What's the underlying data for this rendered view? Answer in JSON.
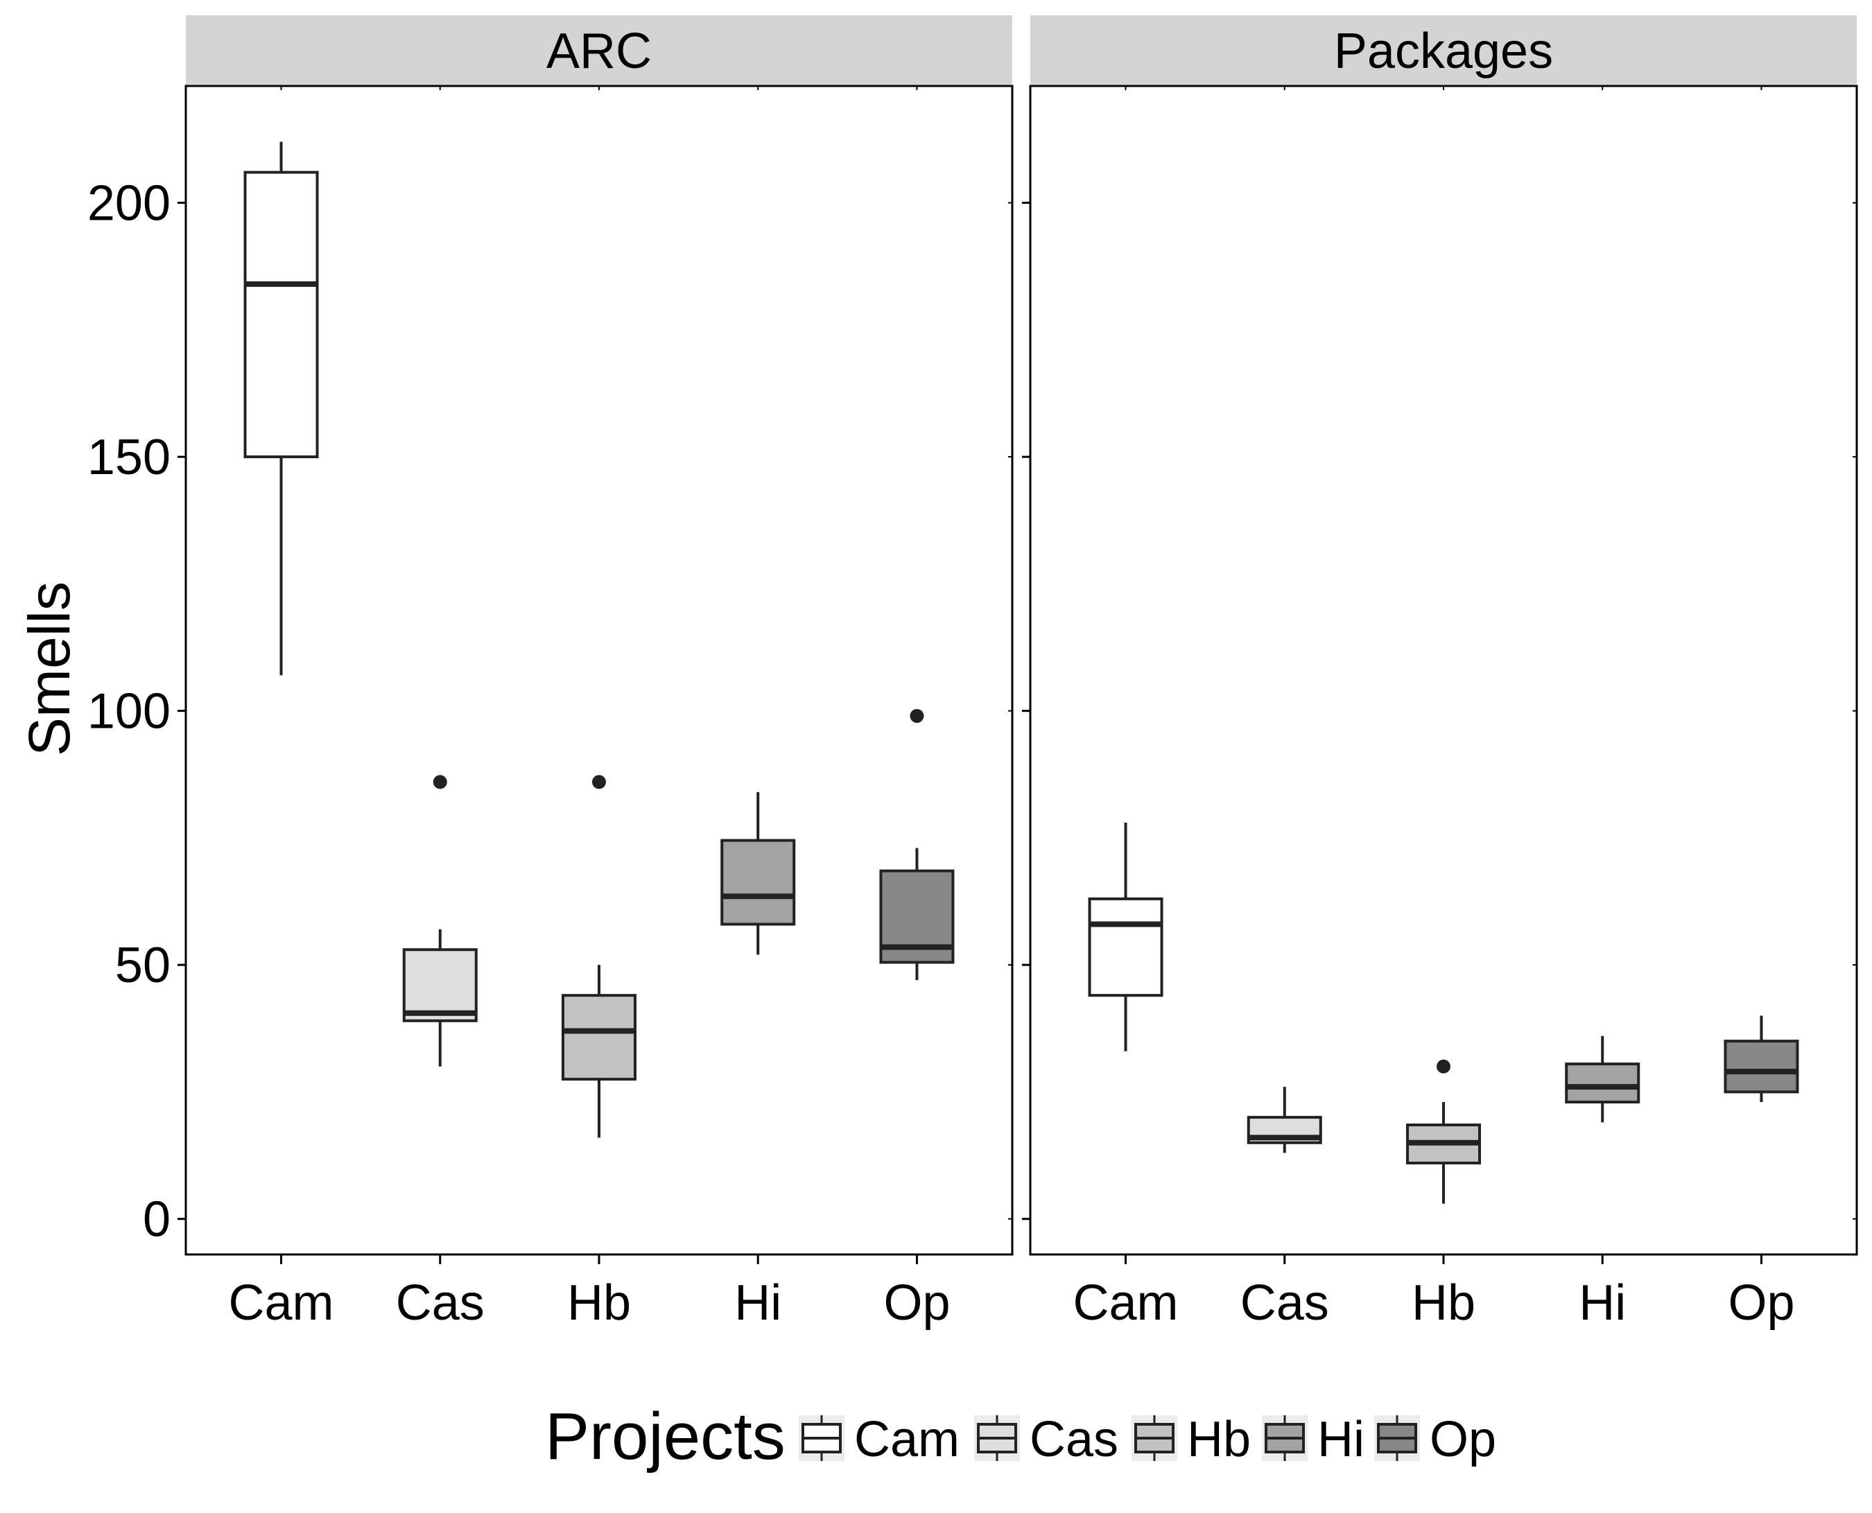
{
  "chart_data": {
    "type": "boxplot",
    "ylabel": "Smells",
    "yticks": [
      0,
      50,
      100,
      150,
      200
    ],
    "ylim": [
      -7,
      223
    ],
    "categories": [
      "Cam",
      "Cas",
      "Hb",
      "Hi",
      "Op"
    ],
    "legend": {
      "title": "Projects",
      "position": "bottom",
      "entries": [
        "Cam",
        "Cas",
        "Hb",
        "Hi",
        "Op"
      ]
    },
    "colors": {
      "Cam": "#ffffff",
      "Cas": "#dedede",
      "Hb": "#c2c2c2",
      "Hi": "#a3a3a3",
      "Op": "#878787",
      "strip": "#d4d4d4",
      "outline": "#222222"
    },
    "facets": [
      {
        "title": "ARC",
        "boxes": [
          {
            "category": "Cam",
            "min": 107,
            "q1": 150,
            "median": 184,
            "q3": 206,
            "max": 212,
            "outliers": []
          },
          {
            "category": "Cas",
            "min": 30,
            "q1": 39,
            "median": 40.5,
            "q3": 53,
            "max": 57,
            "outliers": [
              86
            ]
          },
          {
            "category": "Hb",
            "min": 16,
            "q1": 27.5,
            "median": 37,
            "q3": 44,
            "max": 50,
            "outliers": [
              86
            ]
          },
          {
            "category": "Hi",
            "min": 52,
            "q1": 58,
            "median": 63.5,
            "q3": 74.5,
            "max": 84,
            "outliers": []
          },
          {
            "category": "Op",
            "min": 47,
            "q1": 50.5,
            "median": 53.5,
            "q3": 68.5,
            "max": 73,
            "outliers": [
              99
            ]
          }
        ]
      },
      {
        "title": "Packages",
        "boxes": [
          {
            "category": "Cam",
            "min": 33,
            "q1": 44,
            "median": 58,
            "q3": 63,
            "max": 78,
            "outliers": []
          },
          {
            "category": "Cas",
            "min": 13,
            "q1": 15,
            "median": 16,
            "q3": 20,
            "max": 26,
            "outliers": []
          },
          {
            "category": "Hb",
            "min": 3,
            "q1": 11,
            "median": 15,
            "q3": 18.5,
            "max": 23,
            "outliers": [
              30
            ]
          },
          {
            "category": "Hi",
            "min": 19,
            "q1": 23,
            "median": 26,
            "q3": 30.5,
            "max": 36,
            "outliers": []
          },
          {
            "category": "Op",
            "min": 23,
            "q1": 25,
            "median": 29,
            "q3": 35,
            "max": 40,
            "outliers": []
          }
        ]
      }
    ]
  }
}
